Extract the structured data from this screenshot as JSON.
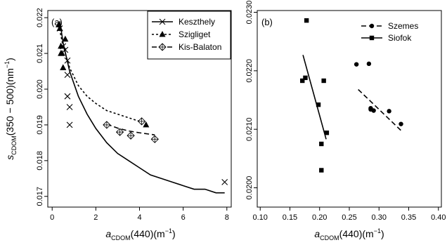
{
  "chart_data": [
    {
      "type": "scatter",
      "panel_label": "(a)",
      "xlabel": {
        "main": "a",
        "sub": "CDOM",
        "rest": "(440)(m",
        "sup": "−1",
        "end": ")"
      },
      "ylabel": {
        "main": "s",
        "sub": "CDOM",
        "rest": "(350 − 500)(nm",
        "sup": "−1",
        "end": ")"
      },
      "xlim": [
        -0.2,
        8.2
      ],
      "ylim": [
        0.0167,
        0.0222
      ],
      "xticks": [
        0,
        2,
        4,
        6,
        8
      ],
      "xtick_labels": [
        "0",
        "2",
        "4",
        "6",
        "8"
      ],
      "yticks": [
        0.017,
        0.018,
        0.019,
        0.02,
        0.021,
        0.022
      ],
      "ytick_labels": [
        "0.017",
        "0.018",
        "0.019",
        "0.020",
        "0.021",
        "0.022"
      ],
      "legend_position": "top-right",
      "series": [
        {
          "name": "Keszthely",
          "marker": "cross",
          "line": "solid",
          "points": [
            [
              0.35,
              0.0217
            ],
            [
              0.5,
              0.0212
            ],
            [
              0.6,
              0.0211
            ],
            [
              0.7,
              0.0208
            ],
            [
              0.7,
              0.0204
            ],
            [
              0.7,
              0.0198
            ],
            [
              0.8,
              0.0195
            ],
            [
              0.8,
              0.019
            ],
            [
              7.9,
              0.0174
            ]
          ],
          "fit": [
            [
              0.35,
              0.0219
            ],
            [
              0.5,
              0.0213
            ],
            [
              0.8,
              0.0205
            ],
            [
              1.2,
              0.0198
            ],
            [
              1.6,
              0.0193
            ],
            [
              2.0,
              0.0189
            ],
            [
              2.5,
              0.0185
            ],
            [
              3.0,
              0.0182
            ],
            [
              3.5,
              0.018
            ],
            [
              4.0,
              0.0178
            ],
            [
              4.5,
              0.0176
            ],
            [
              5.0,
              0.0175
            ],
            [
              5.5,
              0.0174
            ],
            [
              6.0,
              0.0173
            ],
            [
              6.5,
              0.0172
            ],
            [
              7.0,
              0.0172
            ],
            [
              7.5,
              0.0171
            ],
            [
              7.9,
              0.0171
            ]
          ]
        },
        {
          "name": "Szigliget",
          "marker": "triangle",
          "line": "dotted",
          "points": [
            [
              0.3,
              0.0218
            ],
            [
              0.35,
              0.0217
            ],
            [
              0.4,
              0.0212
            ],
            [
              0.4,
              0.021
            ],
            [
              0.45,
              0.021
            ],
            [
              0.5,
              0.0206
            ],
            [
              0.5,
              0.0206
            ],
            [
              0.6,
              0.0214
            ],
            [
              4.3,
              0.019
            ]
          ],
          "fit": [
            [
              0.3,
              0.0218
            ],
            [
              0.5,
              0.0212
            ],
            [
              0.8,
              0.0206
            ],
            [
              1.2,
              0.0201
            ],
            [
              1.6,
              0.0198
            ],
            [
              2.0,
              0.0196
            ],
            [
              2.5,
              0.0194
            ],
            [
              3.0,
              0.0193
            ],
            [
              3.5,
              0.0192
            ],
            [
              4.0,
              0.0191
            ],
            [
              4.3,
              0.019
            ]
          ]
        },
        {
          "name": "Kis-Balaton",
          "marker": "circle-cross",
          "line": "dashed",
          "points": [
            [
              2.5,
              0.019
            ],
            [
              3.1,
              0.0188
            ],
            [
              3.6,
              0.0187
            ],
            [
              4.1,
              0.0191
            ],
            [
              4.7,
              0.0186
            ]
          ],
          "fit": [
            [
              2.5,
              0.01902
            ],
            [
              3.0,
              0.01891
            ],
            [
              3.5,
              0.01883
            ],
            [
              4.0,
              0.01878
            ],
            [
              4.7,
              0.01872
            ]
          ]
        }
      ]
    },
    {
      "type": "scatter",
      "panel_label": "(b)",
      "xlabel": {
        "main": "a",
        "sub": "CDOM",
        "rest": "(440)(m",
        "sup": "−1",
        "end": ")"
      },
      "ylabel": null,
      "xlim": [
        0.095,
        0.405
      ],
      "ylim": [
        0.01967,
        0.02303
      ],
      "xticks": [
        0.1,
        0.15,
        0.2,
        0.25,
        0.3,
        0.35,
        0.4
      ],
      "xtick_labels": [
        "0.10",
        "0.15",
        "0.20",
        "0.25",
        "0.30",
        "0.35",
        "0.40"
      ],
      "yticks": [
        0.02,
        0.021,
        0.022,
        0.023
      ],
      "ytick_labels": [
        "0.0200",
        "0.0210",
        "0.0220",
        "0.0230"
      ],
      "legend_position": "top-right",
      "series": [
        {
          "name": "Szemes",
          "marker": "filled-circle",
          "line": "dashed",
          "points": [
            [
              0.262,
              0.02211
            ],
            [
              0.283,
              0.02212
            ],
            [
              0.286,
              0.02136
            ],
            [
              0.286,
              0.02134
            ],
            [
              0.291,
              0.02132
            ],
            [
              0.317,
              0.02131
            ],
            [
              0.337,
              0.02109
            ]
          ],
          "fit": [
            [
              0.265,
              0.02168
            ],
            [
              0.337,
              0.02098
            ]
          ]
        },
        {
          "name": "Siofok",
          "marker": "filled-square",
          "line": "solid",
          "points": [
            [
              0.171,
              0.02183
            ],
            [
              0.176,
              0.02188
            ],
            [
              0.178,
              0.02286
            ],
            [
              0.198,
              0.02142
            ],
            [
              0.203,
              0.02075
            ],
            [
              0.203,
              0.0203
            ],
            [
              0.207,
              0.02183
            ],
            [
              0.212,
              0.02094
            ]
          ],
          "fit": [
            [
              0.172,
              0.02227
            ],
            [
              0.211,
              0.02083
            ]
          ]
        }
      ]
    }
  ]
}
